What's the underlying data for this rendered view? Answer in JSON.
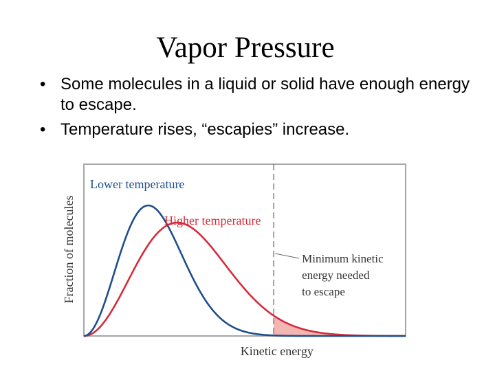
{
  "title": "Vapor Pressure",
  "bullets": [
    "Some molecules in a liquid or solid have enough energy to escape.",
    "Temperature rises, “escapies” increase."
  ],
  "chart_data": {
    "type": "line",
    "xlabel": "Kinetic energy",
    "ylabel": "Fraction of molecules",
    "grid": false,
    "series": [
      {
        "name": "Lower temperature",
        "color": "#1f4e8c",
        "peak_x": 0.2,
        "peak_y": 0.76
      },
      {
        "name": "Higher temperature",
        "color": "#d52b3a",
        "peak_x": 0.29,
        "peak_y": 0.66
      }
    ],
    "threshold": {
      "x": 0.59,
      "label": "Minimum kinetic energy needed to escape",
      "label_lines": [
        "Minimum kinetic",
        "energy needed",
        "to escape"
      ]
    },
    "shading": {
      "higher_color": "#f4b6b2",
      "lower_color": "#8aa6cf"
    },
    "frame_color": "#a6a6a6"
  }
}
